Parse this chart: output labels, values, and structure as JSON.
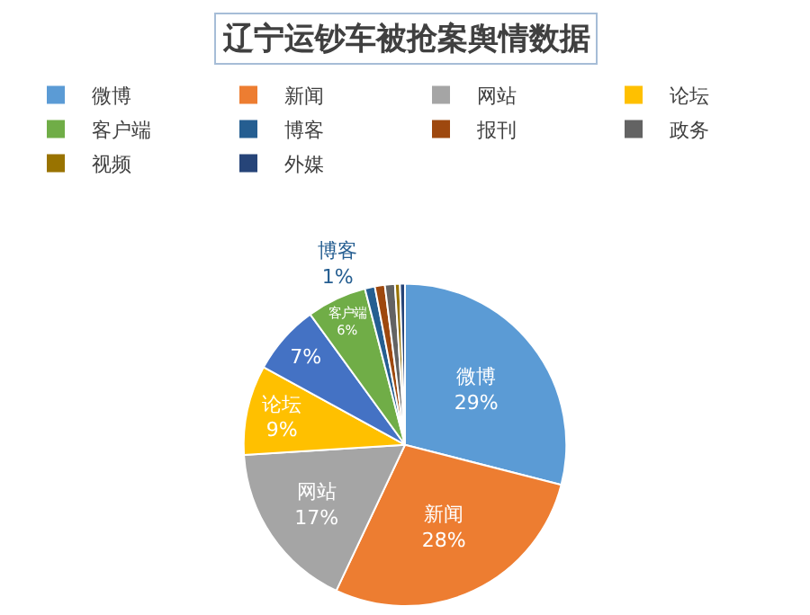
{
  "chart_data": {
    "type": "pie",
    "title": "辽宁运钞车被抢案舆情数据",
    "categories": [
      "微博",
      "新闻",
      "网站",
      "论坛",
      null,
      "客户端",
      "博客",
      "报刊",
      "政务",
      "视频",
      "外媒"
    ],
    "values": [
      29,
      28,
      17,
      9,
      7,
      6,
      1,
      1,
      1,
      0.5,
      0.5
    ],
    "value_labels": [
      "29%",
      "28%",
      "17%",
      "9%",
      "7%",
      "6%",
      "1%",
      null,
      null,
      null,
      null
    ],
    "colors": [
      "#5b9bd5",
      "#ed7d31",
      "#a5a5a5",
      "#ffc000",
      "#4472c4",
      "#70ad47",
      "#255e91",
      "#9e480e",
      "#636363",
      "#997300",
      "#264478"
    ],
    "legend": "top"
  }
}
